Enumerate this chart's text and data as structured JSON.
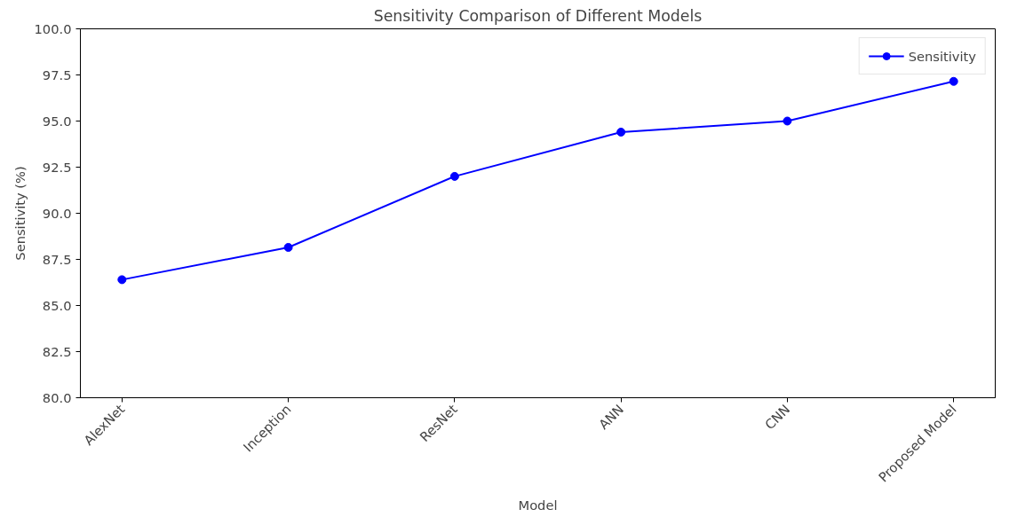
{
  "chart_data": {
    "type": "line",
    "title": "Sensitivity Comparison of Different Models",
    "xlabel": "Model",
    "ylabel": "Sensitivity (%)",
    "categories": [
      "AlexNet",
      "Inception",
      "ResNet",
      "ANN",
      "CNN",
      "Proposed Model"
    ],
    "series": [
      {
        "name": "Sensitivity",
        "color": "#0000ff",
        "values": [
          86.4,
          88.15,
          92.0,
          94.4,
          95.0,
          97.15
        ]
      }
    ],
    "ylim": [
      80,
      100
    ],
    "yticks": [
      {
        "value": 80,
        "label": "80.0"
      },
      {
        "value": 82.5,
        "label": "82.5"
      },
      {
        "value": 85,
        "label": "85.0"
      },
      {
        "value": 87.5,
        "label": "87.5"
      },
      {
        "value": 90,
        "label": "90.0"
      },
      {
        "value": 92.5,
        "label": "92.5"
      },
      {
        "value": 95,
        "label": "95.0"
      },
      {
        "value": 97.5,
        "label": "97.5"
      },
      {
        "value": 100,
        "label": "100.0"
      }
    ],
    "grid": false,
    "legend": "top right",
    "marker": "circle",
    "line_style": "solid"
  }
}
